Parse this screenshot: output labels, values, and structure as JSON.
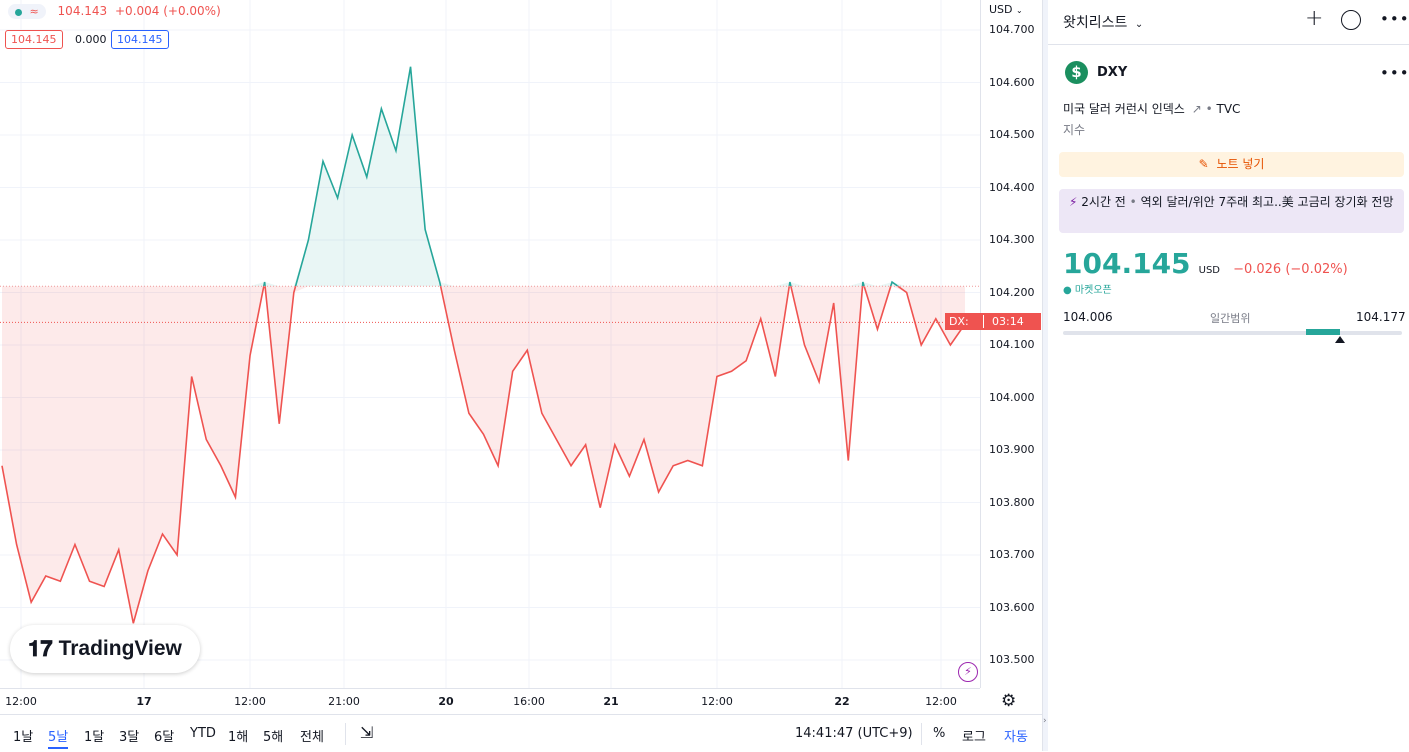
{
  "legend": {
    "symbol_badge": "≈",
    "price": "104.143",
    "change": "+0.004 (+0.00%)",
    "bid": "104.145",
    "spread": "0.000",
    "ask": "104.145"
  },
  "price_axis": {
    "currency": "USD",
    "ticks": [
      "104.700",
      "104.600",
      "104.500",
      "104.400",
      "104.300",
      "104.200",
      "104.100",
      "104.000",
      "103.900",
      "103.800",
      "103.700",
      "103.600",
      "103.500"
    ],
    "symbol_tag": "DX:",
    "countdown": "03:14"
  },
  "time_axis": {
    "labels": [
      "12:00",
      "17",
      "12:00",
      "21:00",
      "20",
      "16:00",
      "21",
      "12:00",
      "22",
      "12:00"
    ]
  },
  "logo_text": "TradingView",
  "bottom_bar": {
    "ranges": [
      "1날",
      "5날",
      "1달",
      "3달",
      "6달",
      "YTD",
      "1해",
      "5해",
      "전체"
    ],
    "active_range": "5날",
    "clock": "14:41:47 (UTC+9)",
    "percent": "%",
    "log": "로그",
    "auto": "자동"
  },
  "watchlist": {
    "title": "왓치리스트",
    "symbol": "DXY",
    "description": "미국 달러 커런시 인덱스",
    "exchange": "TVC",
    "type": "지수",
    "note_button": "노트 넣기",
    "news_time": "2시간 전",
    "news_headline": "역외 달러/위안 7주래 최고..美 고금리 장기화 전망",
    "price": "104.145",
    "currency": "USD",
    "change": "−0.026 (−0.02%)",
    "market_status": "마켓오픈",
    "range_low": "104.006",
    "range_label": "일간범위",
    "range_high": "104.177"
  },
  "colors": {
    "up": "#26a69a",
    "down": "#ef5350",
    "accent": "#2962ff"
  },
  "chart_data": {
    "type": "area",
    "title": "",
    "series": [
      {
        "values": [
          103.87,
          103.72,
          103.61,
          103.66,
          103.65,
          103.72,
          103.65,
          103.64,
          103.71,
          103.57,
          103.67,
          103.74,
          103.7,
          104.04,
          103.92,
          103.87,
          103.81,
          104.08,
          104.22,
          103.95,
          104.2,
          104.3,
          104.45,
          104.38,
          104.5,
          104.42,
          104.55,
          104.47,
          104.63,
          104.32,
          104.22,
          104.09,
          103.97,
          103.93,
          103.87,
          104.05,
          104.09,
          103.97,
          103.92,
          103.87,
          103.91,
          103.79,
          103.91,
          103.85,
          103.92,
          103.82,
          103.87,
          103.88,
          103.87,
          104.04,
          104.05,
          104.07,
          104.15,
          104.04,
          104.22,
          104.1,
          104.03,
          104.18,
          103.88,
          104.22,
          104.13,
          104.22,
          104.2,
          104.1,
          104.15,
          104.1,
          104.14
        ]
      }
    ],
    "ylim": [
      103.45,
      104.75
    ],
    "reference_lines": [
      104.212,
      104.143
    ]
  }
}
